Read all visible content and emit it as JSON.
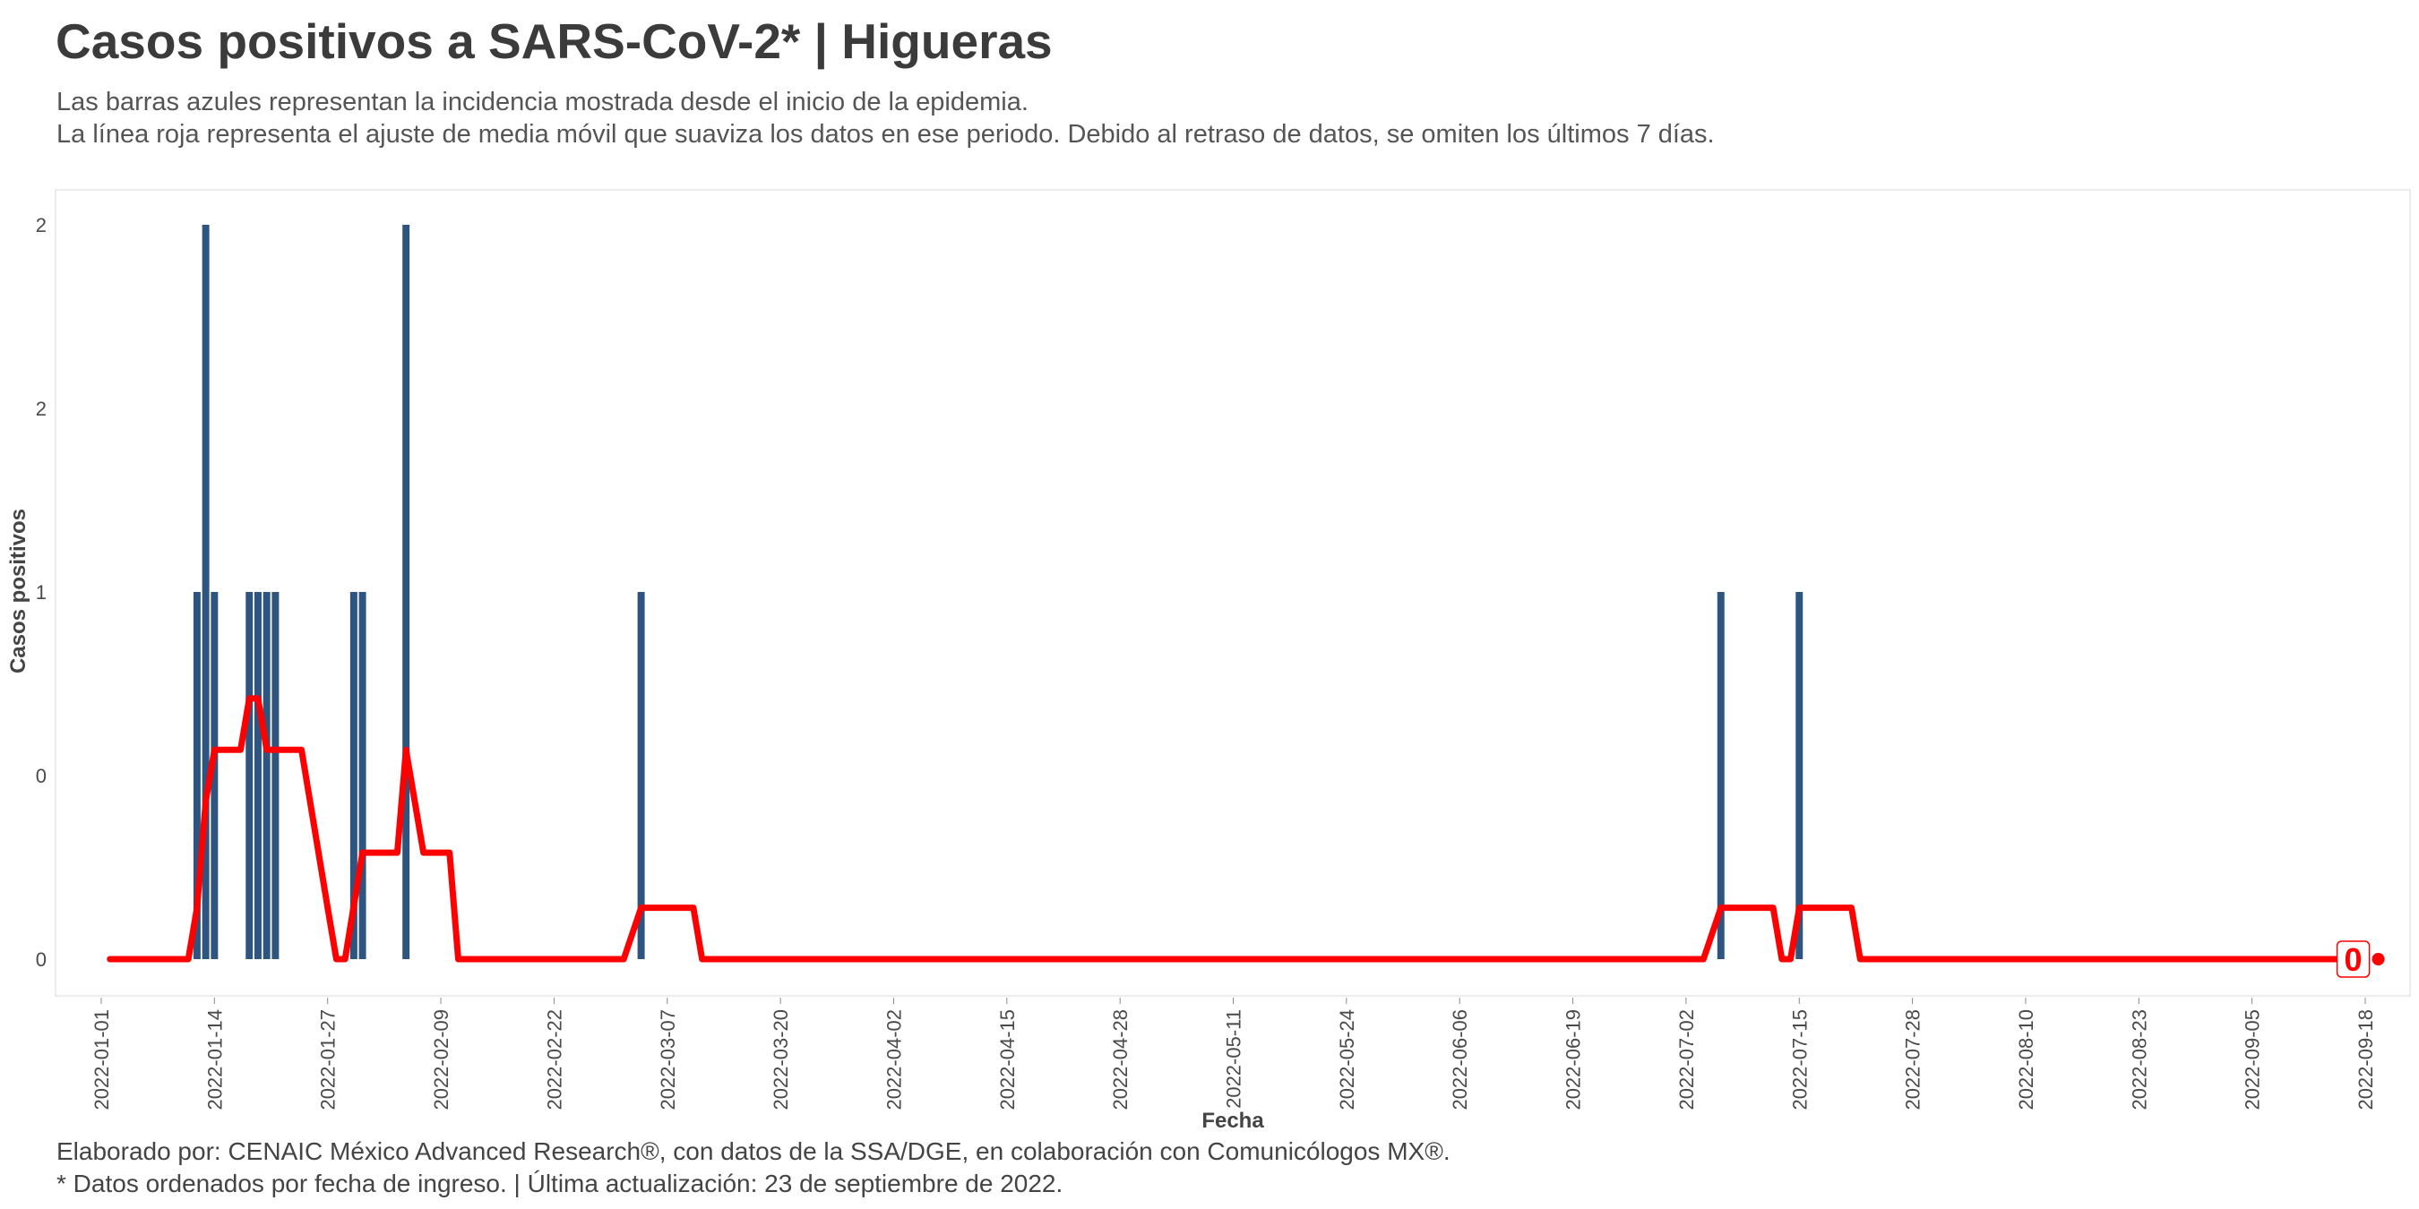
{
  "header": {
    "title": "Casos positivos a SARS-CoV-2* | Higueras",
    "subtitle_line1": "Las barras azules representan la incidencia mostrada desde el inicio de la epidemia.",
    "subtitle_line2": "La línea roja representa el ajuste de media móvil que suaviza los datos en ese periodo. Debido al retraso de datos, se omiten los últimos 7 días."
  },
  "footer": {
    "line1": "Elaborado por: CENAIC México Advanced Research®, con datos de la SSA/DGE, en colaboración con Comunicólogos MX®.",
    "line2": "* Datos ordenados por fecha de ingreso. | Última actualización: 23 de septiembre de 2022."
  },
  "colors": {
    "bars": "#2e557f",
    "line": "#ff0000",
    "panel_border": "#e6e6e6"
  },
  "chart_data": {
    "type": "bar",
    "xlabel": "Fecha",
    "ylabel": "Casos positivos",
    "ylim": [
      0,
      2
    ],
    "grid": false,
    "y_tick_labels": [
      "0",
      "0",
      "1",
      "2",
      "2"
    ],
    "y_tick_values": [
      0,
      0.5,
      1,
      1.5,
      2
    ],
    "x_tick_labels": [
      "2022-01-01",
      "2022-01-14",
      "2022-01-27",
      "2022-02-09",
      "2022-02-22",
      "2022-03-07",
      "2022-03-20",
      "2022-04-02",
      "2022-04-15",
      "2022-04-28",
      "2022-05-11",
      "2022-05-24",
      "2022-06-06",
      "2022-06-19",
      "2022-07-02",
      "2022-07-15",
      "2022-07-28",
      "2022-08-10",
      "2022-08-23",
      "2022-09-05",
      "2022-09-18"
    ],
    "x_range": [
      "2021-12-30",
      "2022-09-19"
    ],
    "series": [
      {
        "type": "bar",
        "points": [
          {
            "date": "2022-01-12",
            "value": 1
          },
          {
            "date": "2022-01-13",
            "value": 2
          },
          {
            "date": "2022-01-14",
            "value": 1
          },
          {
            "date": "2022-01-18",
            "value": 1
          },
          {
            "date": "2022-01-19",
            "value": 1
          },
          {
            "date": "2022-01-20",
            "value": 1
          },
          {
            "date": "2022-01-21",
            "value": 1
          },
          {
            "date": "2022-01-30",
            "value": 1
          },
          {
            "date": "2022-01-31",
            "value": 1
          },
          {
            "date": "2022-02-05",
            "value": 2
          },
          {
            "date": "2022-03-04",
            "value": 1
          },
          {
            "date": "2022-07-06",
            "value": 1
          },
          {
            "date": "2022-07-15",
            "value": 1
          }
        ]
      },
      {
        "type": "line",
        "points": [
          {
            "date": "2022-01-02",
            "value": 0
          },
          {
            "date": "2022-01-11",
            "value": 0
          },
          {
            "date": "2022-01-12",
            "value": 0.14
          },
          {
            "date": "2022-01-13",
            "value": 0.43
          },
          {
            "date": "2022-01-14",
            "value": 0.57
          },
          {
            "date": "2022-01-17",
            "value": 0.57
          },
          {
            "date": "2022-01-18",
            "value": 0.71
          },
          {
            "date": "2022-01-19",
            "value": 0.71
          },
          {
            "date": "2022-01-20",
            "value": 0.57
          },
          {
            "date": "2022-01-24",
            "value": 0.57
          },
          {
            "date": "2022-01-27",
            "value": 0.14
          },
          {
            "date": "2022-01-28",
            "value": 0
          },
          {
            "date": "2022-01-29",
            "value": 0
          },
          {
            "date": "2022-01-31",
            "value": 0.29
          },
          {
            "date": "2022-02-04",
            "value": 0.29
          },
          {
            "date": "2022-02-05",
            "value": 0.57
          },
          {
            "date": "2022-02-07",
            "value": 0.29
          },
          {
            "date": "2022-02-10",
            "value": 0.29
          },
          {
            "date": "2022-02-11",
            "value": 0
          },
          {
            "date": "2022-03-02",
            "value": 0
          },
          {
            "date": "2022-03-04",
            "value": 0.14
          },
          {
            "date": "2022-03-10",
            "value": 0.14
          },
          {
            "date": "2022-03-11",
            "value": 0
          },
          {
            "date": "2022-07-04",
            "value": 0
          },
          {
            "date": "2022-07-06",
            "value": 0.14
          },
          {
            "date": "2022-07-12",
            "value": 0.14
          },
          {
            "date": "2022-07-13",
            "value": 0
          },
          {
            "date": "2022-07-14",
            "value": 0
          },
          {
            "date": "2022-07-15",
            "value": 0.14
          },
          {
            "date": "2022-07-21",
            "value": 0.14
          },
          {
            "date": "2022-07-22",
            "value": 0
          },
          {
            "date": "2022-09-16",
            "value": 0
          }
        ]
      }
    ],
    "end_label": "0"
  }
}
